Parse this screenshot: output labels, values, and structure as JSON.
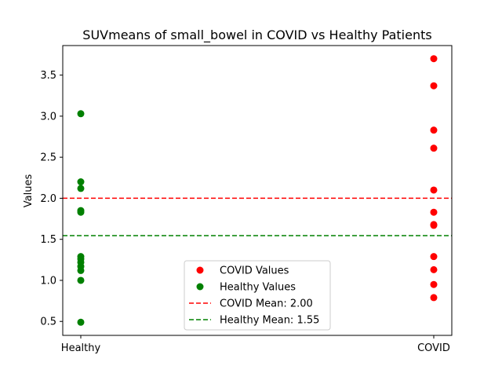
{
  "chart_data": {
    "type": "scatter",
    "title": "SUVmeans of small_bowel in COVID vs Healthy Patients",
    "xlabel": "",
    "ylabel": "Values",
    "categories": [
      "Healthy",
      "COVID"
    ],
    "ylim": [
      0.33,
      3.86
    ],
    "yticks": [
      "0.5",
      "1.0",
      "1.5",
      "2.0",
      "2.5",
      "3.0",
      "3.5"
    ],
    "grid": false,
    "legend_position": "lower center",
    "series": [
      {
        "name": "COVID Values",
        "category": "COVID",
        "color": "#ff0000",
        "values": [
          3.7,
          3.37,
          2.83,
          2.61,
          2.1,
          1.83,
          1.68,
          1.67,
          1.29,
          1.13,
          0.95,
          0.79
        ]
      },
      {
        "name": "Healthy Values",
        "category": "Healthy",
        "color": "#008000",
        "values": [
          3.03,
          2.2,
          2.12,
          1.85,
          1.83,
          1.29,
          1.26,
          1.22,
          1.17,
          1.12,
          1.0,
          0.49
        ]
      }
    ],
    "reference_lines": [
      {
        "name": "COVID Mean: 2.00",
        "value": 2.0,
        "color": "#ff0000",
        "style": "dashed"
      },
      {
        "name": "Healthy Mean: 1.55",
        "value": 1.545,
        "color": "#008000",
        "style": "dashed"
      }
    ]
  }
}
